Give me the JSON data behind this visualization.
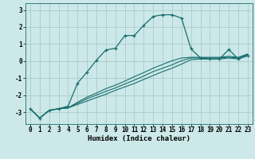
{
  "xlabel": "Humidex (Indice chaleur)",
  "ylabel": "",
  "background_color": "#cce8e8",
  "grid_color": "#aacccc",
  "line_color": "#1a6e6e",
  "xlim": [
    -0.5,
    23.5
  ],
  "ylim": [
    -3.7,
    3.4
  ],
  "yticks": [
    -3,
    -2,
    -1,
    0,
    1,
    2,
    3
  ],
  "xticks": [
    0,
    1,
    2,
    3,
    4,
    5,
    6,
    7,
    8,
    9,
    10,
    11,
    12,
    13,
    14,
    15,
    16,
    17,
    18,
    19,
    20,
    21,
    22,
    23
  ],
  "curve1_x": [
    0,
    1,
    2,
    3,
    4,
    5,
    6,
    7,
    8,
    9,
    10,
    11,
    12,
    13,
    14,
    15,
    16,
    17,
    18,
    19,
    20,
    21,
    22,
    23
  ],
  "curve1_y": [
    -2.8,
    -3.35,
    -2.9,
    -2.8,
    -2.65,
    -1.3,
    -0.65,
    0.05,
    0.65,
    0.75,
    1.5,
    1.5,
    2.1,
    2.62,
    2.72,
    2.72,
    2.52,
    0.72,
    0.18,
    0.12,
    0.12,
    0.68,
    0.12,
    0.32
  ],
  "curve2_x": [
    0,
    1,
    2,
    3,
    4,
    5,
    6,
    7,
    8,
    9,
    10,
    11,
    12,
    13,
    14,
    15,
    16,
    17,
    18,
    19,
    20,
    21,
    22,
    23
  ],
  "curve2_y": [
    -2.8,
    -3.35,
    -2.9,
    -2.8,
    -2.75,
    -2.55,
    -2.35,
    -2.15,
    -1.95,
    -1.72,
    -1.52,
    -1.32,
    -1.08,
    -0.85,
    -0.62,
    -0.42,
    -0.18,
    0.08,
    0.12,
    0.12,
    0.12,
    0.18,
    0.12,
    0.32
  ],
  "curve3_x": [
    0,
    1,
    2,
    3,
    4,
    5,
    6,
    7,
    8,
    9,
    10,
    11,
    12,
    13,
    14,
    15,
    16,
    17,
    18,
    19,
    20,
    21,
    22,
    23
  ],
  "curve3_y": [
    -2.8,
    -3.35,
    -2.9,
    -2.8,
    -2.75,
    -2.48,
    -2.22,
    -2.0,
    -1.78,
    -1.58,
    -1.35,
    -1.12,
    -0.88,
    -0.62,
    -0.42,
    -0.22,
    0.02,
    0.18,
    0.18,
    0.18,
    0.18,
    0.22,
    0.18,
    0.38
  ],
  "curve4_x": [
    0,
    1,
    2,
    3,
    4,
    5,
    6,
    7,
    8,
    9,
    10,
    11,
    12,
    13,
    14,
    15,
    16,
    17,
    18,
    19,
    20,
    21,
    22,
    23
  ],
  "curve4_y": [
    -2.8,
    -3.35,
    -2.9,
    -2.8,
    -2.75,
    -2.42,
    -2.12,
    -1.88,
    -1.62,
    -1.42,
    -1.18,
    -0.92,
    -0.68,
    -0.42,
    -0.2,
    0.02,
    0.18,
    0.22,
    0.22,
    0.22,
    0.22,
    0.28,
    0.22,
    0.42
  ]
}
